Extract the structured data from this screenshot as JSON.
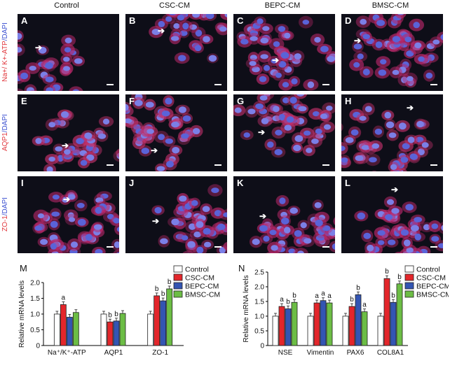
{
  "columns": [
    "Control",
    "CSC-CM",
    "BEPC-CM",
    "BMSC-CM"
  ],
  "rows": [
    {
      "marker": "Na+/ K+-ATP",
      "stain": "/DAPI"
    },
    {
      "marker": "AQP1",
      "stain": "/DAPI"
    },
    {
      "marker": "ZO-1",
      "stain": "/DAPI"
    }
  ],
  "panel_letters": [
    "A",
    "B",
    "C",
    "D",
    "E",
    "F",
    "G",
    "H",
    "I",
    "J",
    "K",
    "L"
  ],
  "chart_labels": [
    "M",
    "N"
  ],
  "colors": {
    "control": "#ffffff",
    "csc": "#e3262b",
    "bepc": "#3355b3",
    "bmsc": "#6cbd45"
  },
  "chart_data": [
    {
      "type": "bar",
      "ylabel": "Relative mRNA levels",
      "ylim": [
        0,
        2.0
      ],
      "yticks": [
        "0",
        "0.5",
        "1.0",
        "1.5",
        "2.0"
      ],
      "categories": [
        "Na⁺/K⁺-ATP",
        "AQP1",
        "ZO-1"
      ],
      "series": [
        {
          "name": "Control",
          "values": [
            1.0,
            1.0,
            1.0
          ]
        },
        {
          "name": "CSC-CM",
          "values": [
            1.3,
            0.75,
            1.58
          ]
        },
        {
          "name": "BEPC-CM",
          "values": [
            0.9,
            0.78,
            1.42
          ]
        },
        {
          "name": "BMSC-CM",
          "values": [
            1.05,
            1.02,
            1.8
          ]
        }
      ],
      "annotations": [
        [
          "",
          "a",
          "",
          ""
        ],
        [
          "",
          "b",
          "b",
          ""
        ],
        [
          "",
          "b",
          "b",
          "b"
        ]
      ],
      "legend": "top-right"
    },
    {
      "type": "bar",
      "ylabel": "Relative mRNA levels",
      "ylim": [
        0,
        2.5
      ],
      "yticks": [
        "0",
        "0.5",
        "1.0",
        "1.5",
        "2.0",
        "2.5"
      ],
      "categories": [
        "NSE",
        "Vimentin",
        "PAX6",
        "COL8A1"
      ],
      "series": [
        {
          "name": "Control",
          "values": [
            1.0,
            1.0,
            1.0,
            1.0
          ]
        },
        {
          "name": "CSC-CM",
          "values": [
            1.33,
            1.45,
            1.33,
            2.28
          ]
        },
        {
          "name": "BEPC-CM",
          "values": [
            1.25,
            1.53,
            1.73,
            1.47
          ]
        },
        {
          "name": "BMSC-CM",
          "values": [
            1.47,
            1.45,
            1.15,
            2.1
          ]
        }
      ],
      "annotations": [
        [
          "",
          "a",
          "b",
          "b"
        ],
        [
          "",
          "a",
          "a",
          "a"
        ],
        [
          "",
          "b",
          "b",
          "a"
        ],
        [
          "",
          "b",
          "b",
          "b"
        ]
      ],
      "legend": "top-right"
    }
  ]
}
